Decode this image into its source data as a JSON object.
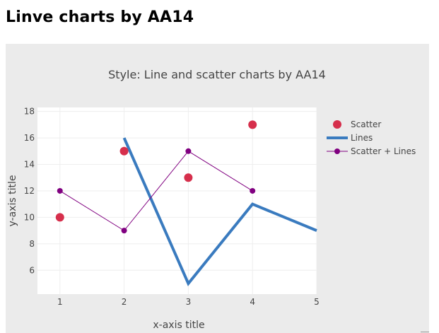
{
  "page": {
    "title": "Linve charts by AA14"
  },
  "chart_data": {
    "type": "scatter",
    "title": "Style: Line and scatter charts by AA14",
    "xlabel": "x-axis title",
    "ylabel": "y-axis title",
    "xlim": [
      0.65,
      5.0
    ],
    "ylim": [
      4.2,
      18.3
    ],
    "xticks": [
      "1",
      "2",
      "3",
      "4",
      "5"
    ],
    "yticks": [
      "6",
      "8",
      "10",
      "12",
      "14",
      "16",
      "18"
    ],
    "xtick_values": [
      1,
      2,
      3,
      4,
      5
    ],
    "ytick_values": [
      6,
      8,
      10,
      12,
      14,
      16,
      18
    ],
    "grid": true,
    "legend_position": "right",
    "series": [
      {
        "name": "Scatter",
        "mode": "markers",
        "color": "#d62f4c",
        "x": [
          1,
          2,
          3,
          4
        ],
        "y": [
          10,
          15,
          13,
          17
        ]
      },
      {
        "name": "Lines",
        "mode": "lines",
        "color": "#3a7bbf",
        "x": [
          2,
          3,
          4,
          5
        ],
        "y": [
          16,
          5,
          11,
          9
        ]
      },
      {
        "name": "Scatter + Lines",
        "mode": "lines+markers",
        "color": "#800080",
        "x": [
          1,
          2,
          3,
          4
        ],
        "y": [
          12,
          9,
          15,
          12
        ]
      }
    ]
  }
}
